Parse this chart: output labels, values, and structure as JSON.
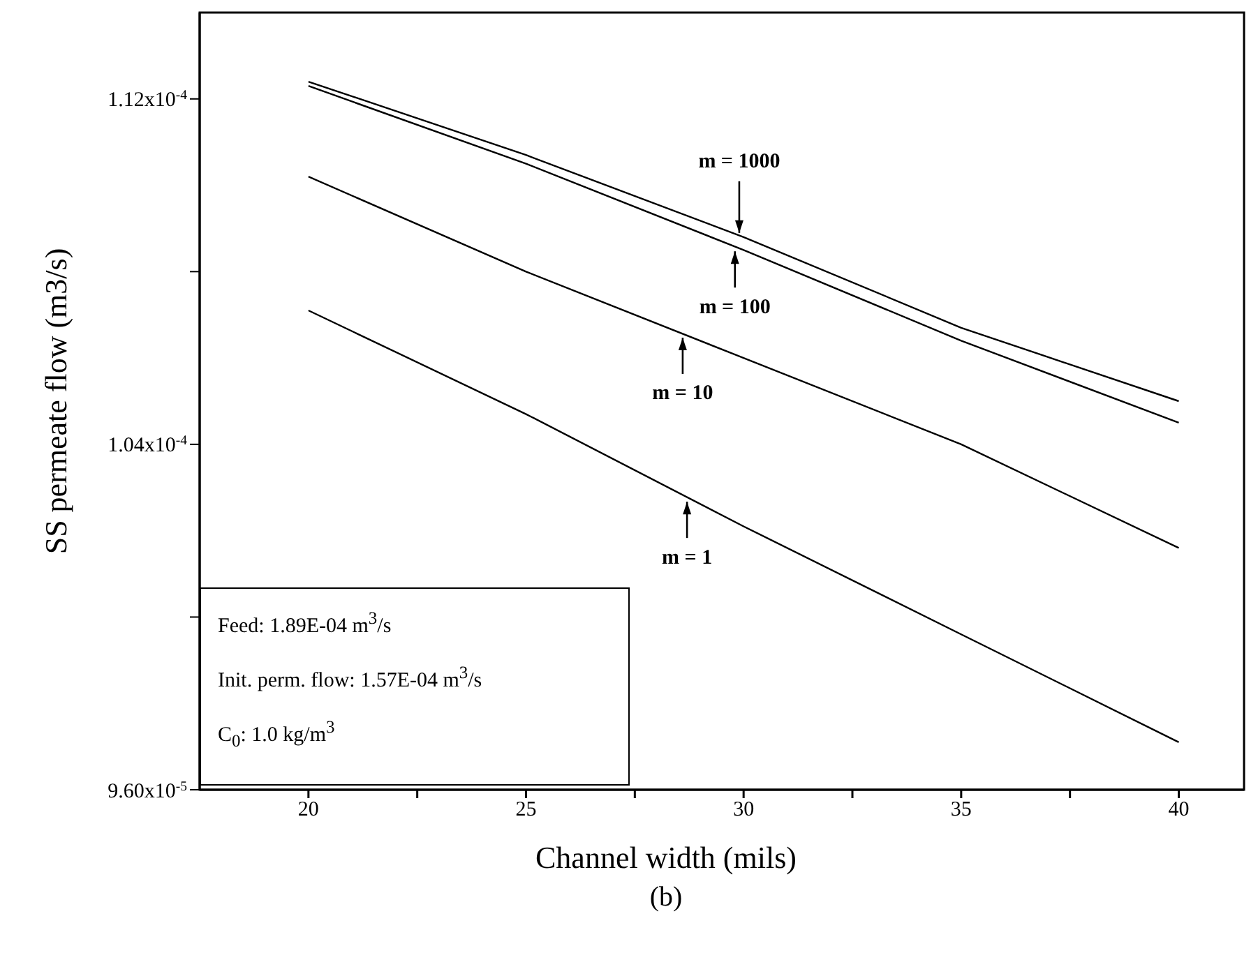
{
  "chart_data": {
    "type": "line",
    "xlabel": "Channel width (mils)",
    "ylabel": "SS permeate flow (m3/s)",
    "x": [
      20,
      25,
      30,
      35,
      40
    ],
    "series": [
      {
        "color": "#000000",
        "values": [
          0.0001124,
          0.0001107,
          0.0001088,
          0.0001067,
          0.000105
        ]
      },
      {
        "color": "#000000",
        "values": [
          0.0001123,
          0.0001105,
          0.0001085,
          0.0001064,
          0.0001045
        ]
      },
      {
        "color": "#000000",
        "values": [
          0.0001102,
          0.000108,
          0.000106,
          0.000104,
          0.0001016
        ]
      },
      {
        "color": "#000000",
        "values": [
          0.0001071,
          0.0001047,
          0.0001021,
          9.96e-05,
          9.71e-05
        ]
      }
    ],
    "xlim": [
      17.5,
      41.5
    ],
    "xticks": [
      20,
      {
        "value": 22.5,
        "label": null
      },
      25,
      {
        "value": 27.5,
        "label": null
      },
      30,
      {
        "value": 32.5,
        "label": null
      },
      35,
      {
        "value": 37.5,
        "label": null
      },
      40
    ],
    "ylim": [
      9.6e-05,
      0.000114
    ],
    "yticks": [
      {
        "value": 9.6e-05,
        "label": "9.60x10$^{-5}$"
      },
      {
        "value": 0.0001,
        "label": null
      },
      {
        "value": 0.000104,
        "label": "1.04x10$^{-4}$"
      },
      {
        "value": 0.000108,
        "label": null
      },
      {
        "value": 0.000112,
        "label": "1.12x10$^{-4}$"
      }
    ],
    "grid": false,
    "legend": false,
    "marker": "none",
    "line_style": "solid",
    "annotations": [
      {
        "text": "m = 1000",
        "x": 29.9,
        "y": 0.0001088
      },
      {
        "text": "m = 100",
        "x": 29.8,
        "y": 0.0001086
      },
      {
        "text": "m = 10",
        "x": 28.6,
        "y": 0.0001066
      },
      {
        "text": "m = 1",
        "x": 28.7,
        "y": 0.0001028
      },
      "Feed: 1.89E-04 m$^{3}$/s",
      "Init. perm. flow: 1.57E-04 m$^{3}$/s",
      "C$_{0}$: 1.0 kg/m$^{3}$",
      "(b)"
    ]
  }
}
